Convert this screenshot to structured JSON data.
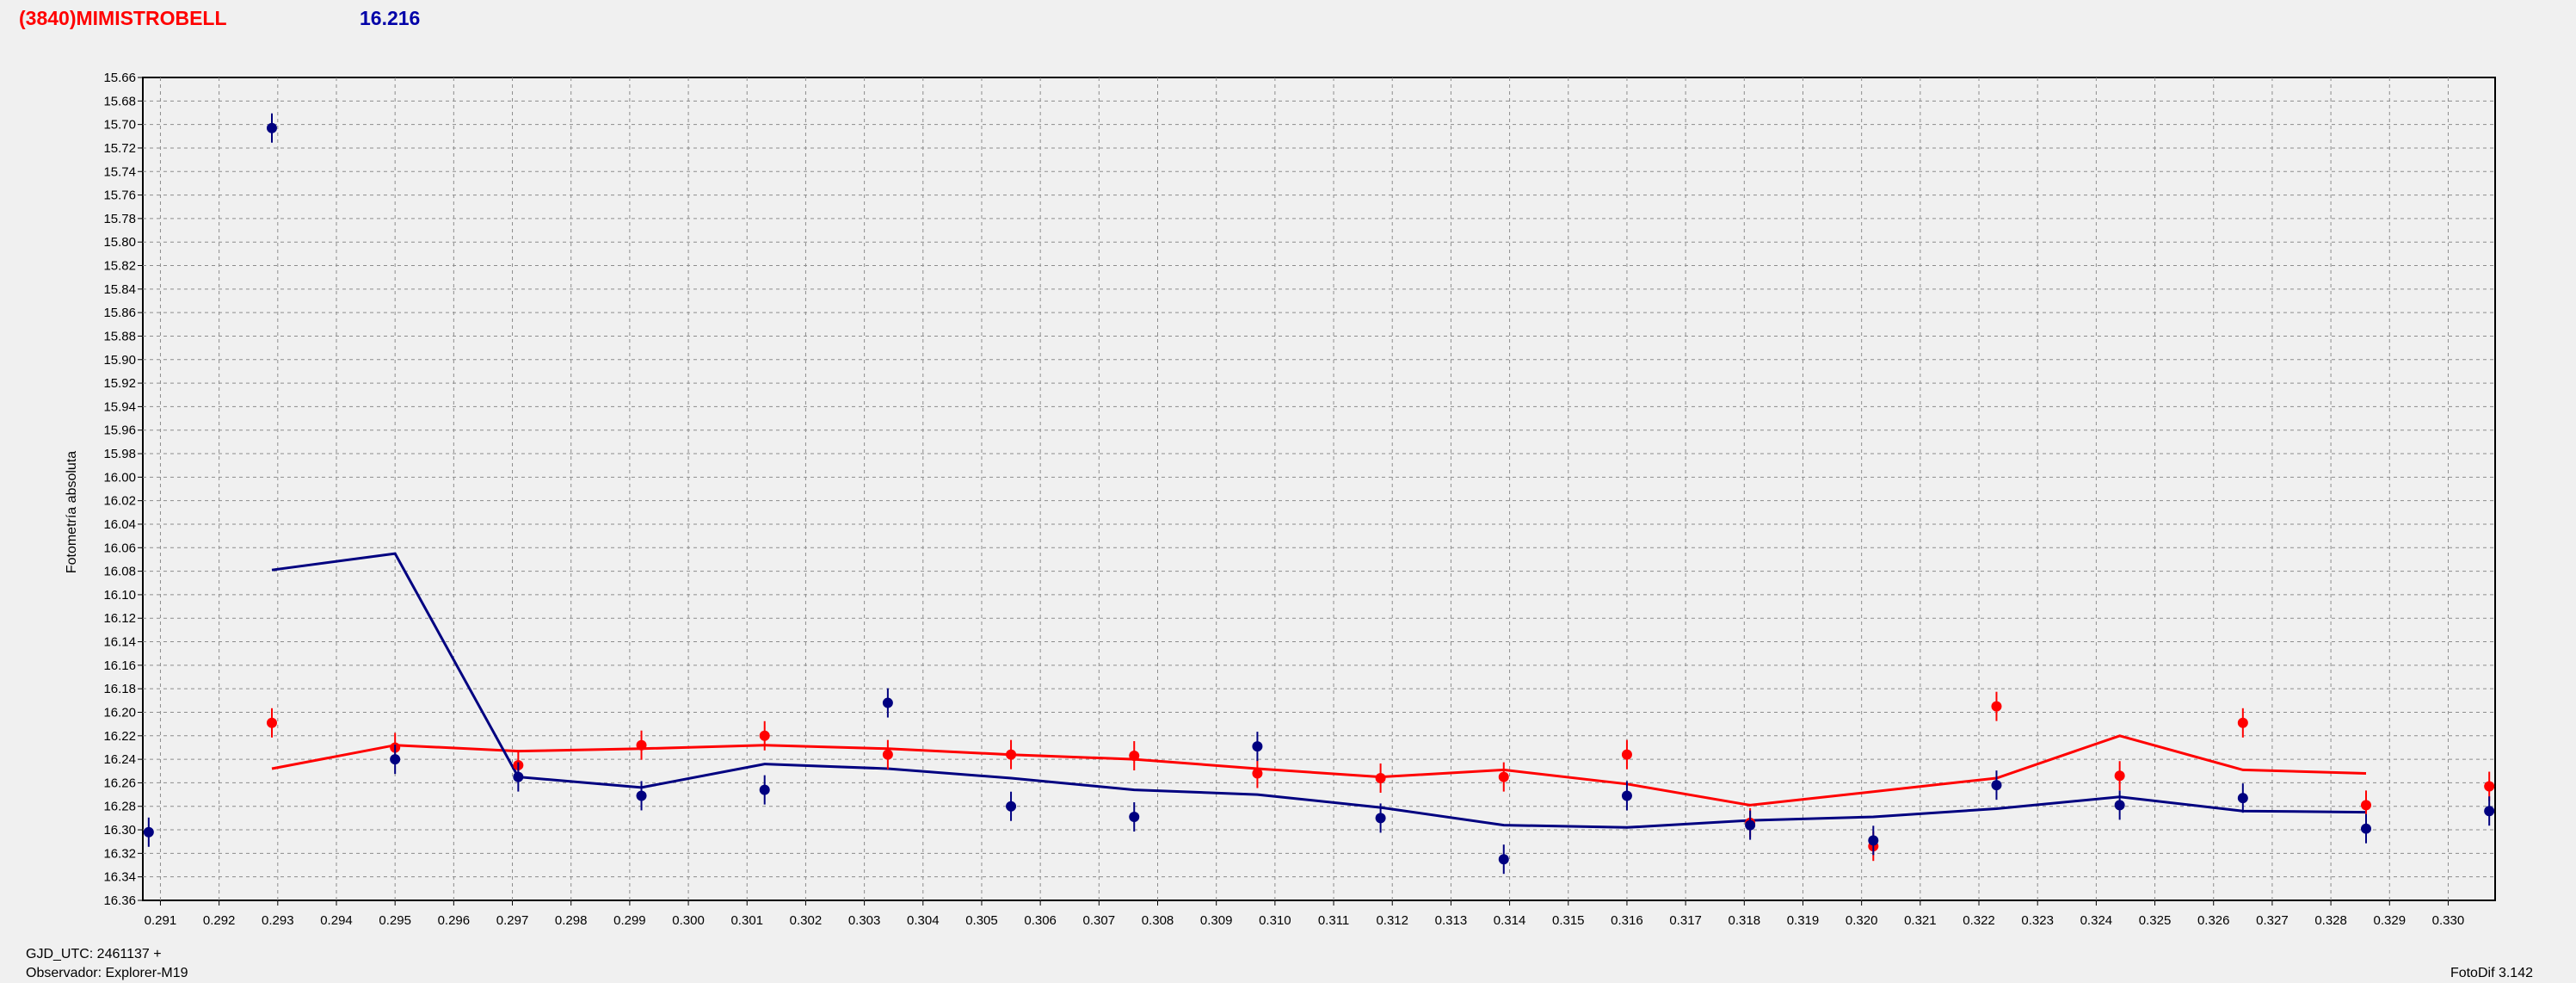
{
  "header": {
    "target_name": "(3840)MIMISTROBELL",
    "magnitude": "16.216"
  },
  "footer": {
    "gjd_label": "GJD_UTC: 2461137 +",
    "observer_label": "Observador: Explorer-M19",
    "version_label": "FotoDif 3.142"
  },
  "colors": {
    "series_red": "#ff0000",
    "series_blue": "#000080",
    "grid": "#8c8c8c",
    "plot_bg": "#f0f0f0"
  },
  "chart_data": {
    "type": "scatter",
    "ylabel": "Fotometría absoluta",
    "xlabel": "",
    "xlim": [
      0.2907,
      0.3308
    ],
    "ylim": [
      15.66,
      16.36
    ],
    "y_inverted": true,
    "grid": true,
    "x_ticks": [
      "0.291",
      "0.292",
      "0.293",
      "0.294",
      "0.295",
      "0.296",
      "0.297",
      "0.298",
      "0.299",
      "0.300",
      "0.301",
      "0.302",
      "0.303",
      "0.304",
      "0.305",
      "0.306",
      "0.307",
      "0.308",
      "0.309",
      "0.310",
      "0.311",
      "0.312",
      "0.313",
      "0.314",
      "0.315",
      "0.316",
      "0.317",
      "0.318",
      "0.319",
      "0.320",
      "0.321",
      "0.322",
      "0.323",
      "0.324",
      "0.325",
      "0.326",
      "0.327",
      "0.328",
      "0.329",
      "0.330"
    ],
    "y_ticks": [
      "15.66",
      "15.68",
      "15.70",
      "15.72",
      "15.74",
      "15.76",
      "15.78",
      "15.80",
      "15.82",
      "15.84",
      "15.86",
      "15.88",
      "15.90",
      "15.92",
      "15.94",
      "15.96",
      "15.98",
      "16.00",
      "16.02",
      "16.04",
      "16.06",
      "16.08",
      "16.10",
      "16.12",
      "16.14",
      "16.16",
      "16.18",
      "16.20",
      "16.22",
      "16.24",
      "16.26",
      "16.28",
      "16.30",
      "16.32",
      "16.34",
      "16.36"
    ],
    "series": [
      {
        "color": "#ff0000",
        "points": [
          {
            "x": 0.2929,
            "y": 16.209
          },
          {
            "x": 0.295,
            "y": 16.23
          },
          {
            "x": 0.2971,
            "y": 16.245
          },
          {
            "x": 0.2992,
            "y": 16.228
          },
          {
            "x": 0.3013,
            "y": 16.22
          },
          {
            "x": 0.3034,
            "y": 16.236
          },
          {
            "x": 0.3055,
            "y": 16.236
          },
          {
            "x": 0.3076,
            "y": 16.237
          },
          {
            "x": 0.3097,
            "y": 16.252
          },
          {
            "x": 0.3118,
            "y": 16.256
          },
          {
            "x": 0.3139,
            "y": 16.255
          },
          {
            "x": 0.316,
            "y": 16.236
          },
          {
            "x": 0.3181,
            "y": 16.294
          },
          {
            "x": 0.3202,
            "y": 16.314
          },
          {
            "x": 0.3223,
            "y": 16.195
          },
          {
            "x": 0.3244,
            "y": 16.254
          },
          {
            "x": 0.3265,
            "y": 16.209
          },
          {
            "x": 0.3286,
            "y": 16.279
          },
          {
            "x": 0.3307,
            "y": 16.263
          }
        ],
        "trend": [
          {
            "x": 0.2929,
            "y": 16.248
          },
          {
            "x": 0.295,
            "y": 16.228
          },
          {
            "x": 0.2971,
            "y": 16.233
          },
          {
            "x": 0.2992,
            "y": 16.231
          },
          {
            "x": 0.3013,
            "y": 16.228
          },
          {
            "x": 0.3034,
            "y": 16.231
          },
          {
            "x": 0.3055,
            "y": 16.236
          },
          {
            "x": 0.3076,
            "y": 16.24
          },
          {
            "x": 0.3097,
            "y": 16.248
          },
          {
            "x": 0.3118,
            "y": 16.255
          },
          {
            "x": 0.3139,
            "y": 16.249
          },
          {
            "x": 0.316,
            "y": 16.261
          },
          {
            "x": 0.3181,
            "y": 16.279
          },
          {
            "x": 0.3223,
            "y": 16.256
          },
          {
            "x": 0.3244,
            "y": 16.22
          },
          {
            "x": 0.3265,
            "y": 16.249
          },
          {
            "x": 0.3286,
            "y": 16.252
          }
        ]
      },
      {
        "color": "#000080",
        "points": [
          {
            "x": 0.2908,
            "y": 16.302
          },
          {
            "x": 0.2929,
            "y": 15.703
          },
          {
            "x": 0.295,
            "y": 16.24
          },
          {
            "x": 0.2971,
            "y": 16.255
          },
          {
            "x": 0.2992,
            "y": 16.271
          },
          {
            "x": 0.3013,
            "y": 16.266
          },
          {
            "x": 0.3034,
            "y": 16.192
          },
          {
            "x": 0.3055,
            "y": 16.28
          },
          {
            "x": 0.3076,
            "y": 16.289
          },
          {
            "x": 0.3097,
            "y": 16.229
          },
          {
            "x": 0.3118,
            "y": 16.29
          },
          {
            "x": 0.3139,
            "y": 16.325
          },
          {
            "x": 0.316,
            "y": 16.271
          },
          {
            "x": 0.3181,
            "y": 16.296
          },
          {
            "x": 0.3202,
            "y": 16.309
          },
          {
            "x": 0.3223,
            "y": 16.262
          },
          {
            "x": 0.3244,
            "y": 16.279
          },
          {
            "x": 0.3265,
            "y": 16.273
          },
          {
            "x": 0.3286,
            "y": 16.299
          },
          {
            "x": 0.3307,
            "y": 16.284
          }
        ],
        "trend": [
          {
            "x": 0.2929,
            "y": 16.079
          },
          {
            "x": 0.295,
            "y": 16.065
          },
          {
            "x": 0.2971,
            "y": 16.255
          },
          {
            "x": 0.2992,
            "y": 16.264
          },
          {
            "x": 0.3013,
            "y": 16.244
          },
          {
            "x": 0.3034,
            "y": 16.248
          },
          {
            "x": 0.3055,
            "y": 16.256
          },
          {
            "x": 0.3076,
            "y": 16.266
          },
          {
            "x": 0.3097,
            "y": 16.27
          },
          {
            "x": 0.3118,
            "y": 16.281
          },
          {
            "x": 0.3139,
            "y": 16.296
          },
          {
            "x": 0.316,
            "y": 16.298
          },
          {
            "x": 0.3181,
            "y": 16.292
          },
          {
            "x": 0.3202,
            "y": 16.289
          },
          {
            "x": 0.3223,
            "y": 16.282
          },
          {
            "x": 0.3244,
            "y": 16.272
          },
          {
            "x": 0.3265,
            "y": 16.284
          },
          {
            "x": 0.3286,
            "y": 16.285
          }
        ]
      }
    ]
  }
}
